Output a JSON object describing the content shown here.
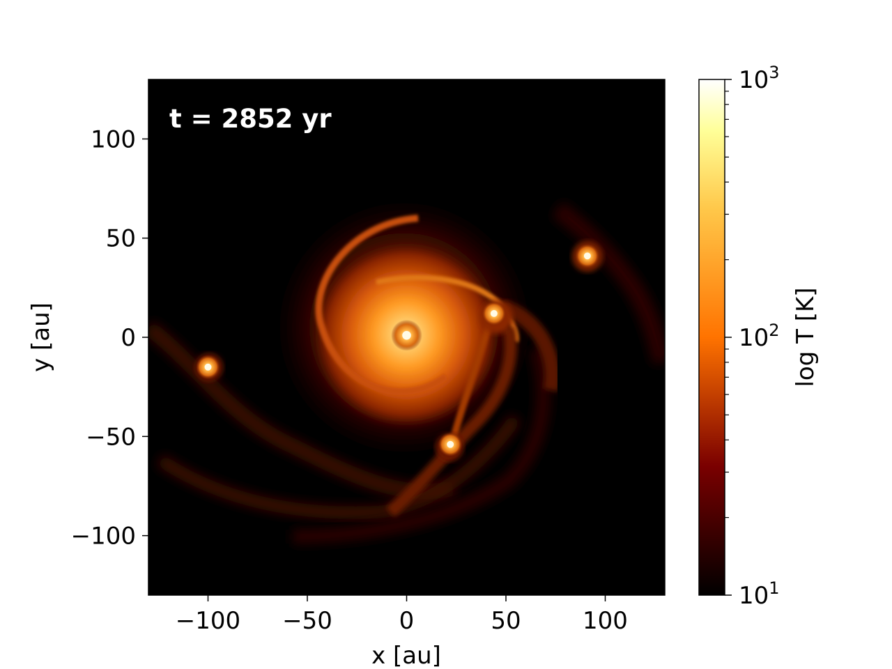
{
  "chart_data": {
    "type": "heatmap",
    "annotation": "t = 2852 yr",
    "xlabel": "x [au]",
    "ylabel": "y [au]",
    "xlim": [
      -130,
      130
    ],
    "ylim": [
      -130,
      130
    ],
    "x_ticks": [
      {
        "value": -100,
        "label": "−100"
      },
      {
        "value": -50,
        "label": "−50"
      },
      {
        "value": 0,
        "label": "0"
      },
      {
        "value": 50,
        "label": "50"
      },
      {
        "value": 100,
        "label": "100"
      }
    ],
    "y_ticks": [
      {
        "value": 100,
        "label": "100"
      },
      {
        "value": 50,
        "label": "50"
      },
      {
        "value": 0,
        "label": "0"
      },
      {
        "value": -50,
        "label": "−50"
      },
      {
        "value": -100,
        "label": "−100"
      }
    ],
    "colorbar": {
      "label": "log T [K]",
      "scale": "log",
      "range": [
        10,
        1000
      ],
      "colormap": "afmhot",
      "ticks": [
        {
          "value": 10,
          "base": "10",
          "exp": "1"
        },
        {
          "value": 100,
          "base": "10",
          "exp": "2"
        },
        {
          "value": 1000,
          "base": "10",
          "exp": "3"
        }
      ]
    },
    "features": [
      {
        "kind": "central-star",
        "x": 0,
        "y": 1,
        "T": 1000
      },
      {
        "kind": "clump",
        "x": 44,
        "y": 12,
        "T": 500
      },
      {
        "kind": "clump",
        "x": 91,
        "y": 41,
        "T": 300
      },
      {
        "kind": "clump",
        "x": -100,
        "y": -15,
        "T": 250
      },
      {
        "kind": "clump",
        "x": 22,
        "y": -54,
        "T": 250
      }
    ]
  }
}
